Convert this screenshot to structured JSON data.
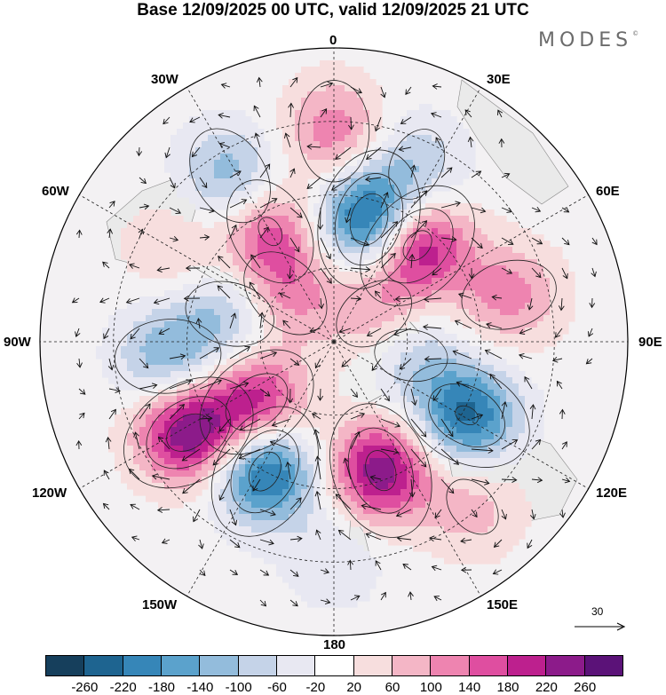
{
  "title": "Base 12/09/2025 00 UTC, valid 12/09/2025 21 UTC",
  "brand": {
    "name": "MODES",
    "mark": "©"
  },
  "longitude_labels": [
    "0",
    "30E",
    "60E",
    "90E",
    "120E",
    "150E",
    "180",
    "150W",
    "120W",
    "90W",
    "60W",
    "30W"
  ],
  "reference_vector": {
    "label": "30"
  },
  "colorbar": {
    "ticks": [
      "-260",
      "-220",
      "-180",
      "-140",
      "-100",
      "-60",
      "-20",
      "20",
      "60",
      "100",
      "140",
      "180",
      "220",
      "260"
    ],
    "colors": [
      "#163f5c",
      "#1e6490",
      "#3686b8",
      "#5ba2cc",
      "#93bcdc",
      "#c5d3e8",
      "#e8e8f2",
      "#ffffff",
      "#f7dede",
      "#f4b6c6",
      "#ee84b0",
      "#df4ea0",
      "#bd208e",
      "#8c1b8a",
      "#5b1278"
    ]
  },
  "chart_data": {
    "type": "heatmap",
    "projection": "south polar stereographic",
    "title": "Base 12/09/2025 00 UTC, valid 12/09/2025 21 UTC",
    "units_note": "shaded anomaly field with wind vectors",
    "color_levels": [
      -260,
      -220,
      -180,
      -140,
      -100,
      -60,
      -20,
      20,
      60,
      100,
      140,
      180,
      220,
      260
    ],
    "longitude_lines_deg": [
      0,
      30,
      60,
      90,
      120,
      150,
      180,
      -150,
      -120,
      -90,
      -60,
      -30
    ],
    "reference_vector": 30,
    "blobs": [
      {
        "lon": 0,
        "colat": 43,
        "value": 130
      },
      {
        "lon": -32,
        "colat": 40,
        "value": -130
      },
      {
        "lon": 16,
        "colat": 26,
        "value": -270
      },
      {
        "lon": 41,
        "colat": 26,
        "value": 240
      },
      {
        "lon": -30,
        "colat": 26,
        "value": 150
      },
      {
        "lon": 25,
        "colat": 40,
        "value": -90
      },
      {
        "lon": 75,
        "colat": 37,
        "value": 120
      },
      {
        "lon": -95,
        "colat": 34,
        "value": -140
      },
      {
        "lon": -75,
        "colat": 22,
        "value": -110
      },
      {
        "lon": -122,
        "colat": 35,
        "value": 260
      },
      {
        "lon": -128,
        "colat": 20,
        "value": 200
      },
      {
        "lon": -152,
        "colat": 30,
        "value": -250
      },
      {
        "lon": 160,
        "colat": 28,
        "value": 250
      },
      {
        "lon": 119,
        "colat": 31,
        "value": -230
      },
      {
        "lon": 100,
        "colat": 16,
        "value": -90
      },
      {
        "lon": -60,
        "colat": 38,
        "value": 60
      },
      {
        "lon": 55,
        "colat": 10,
        "value": 100
      },
      {
        "lon": -45,
        "colat": 14,
        "value": 120
      },
      {
        "lon": 180,
        "colat": 44,
        "value": -60
      },
      {
        "lon": 140,
        "colat": 44,
        "value": 80
      }
    ]
  }
}
